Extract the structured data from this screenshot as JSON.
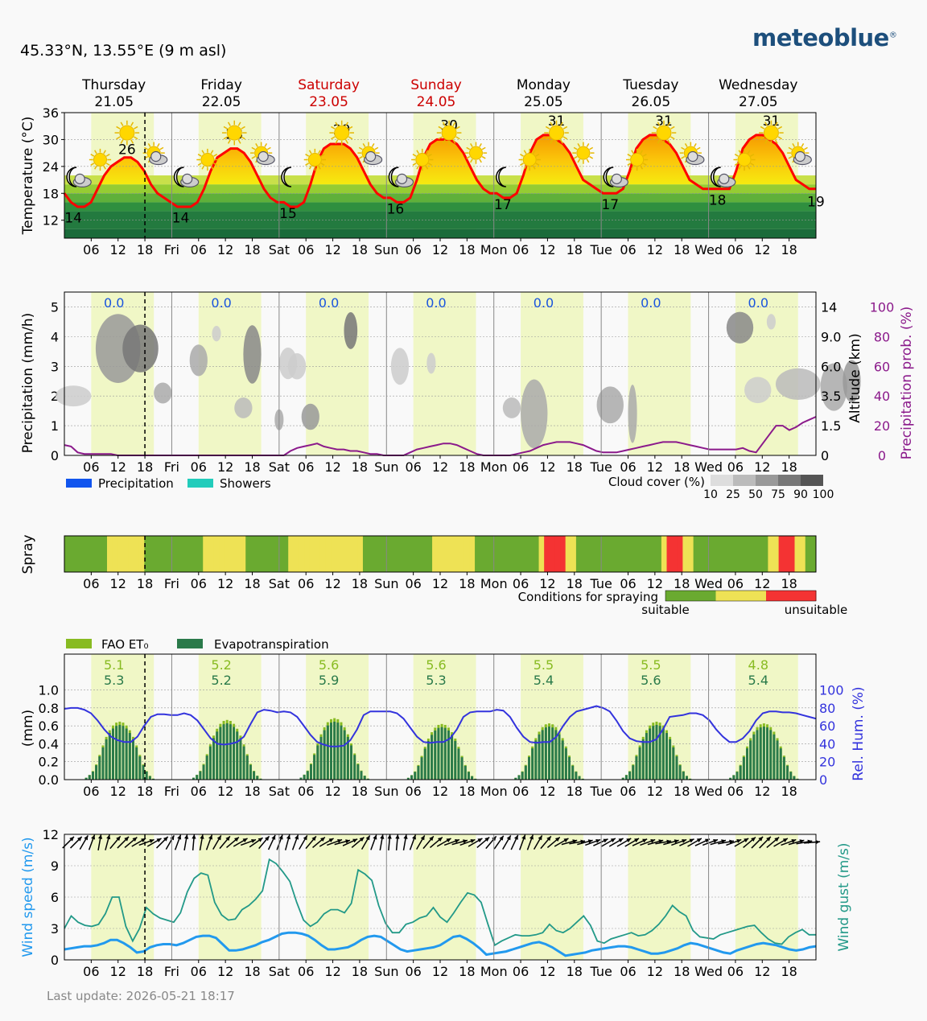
{
  "header": {
    "location": "45.33°N, 13.55°E (9 m asl)",
    "brand": "meteoblue",
    "brand_mark": "®",
    "last_update": "Last update: 2026-05-21 18:17"
  },
  "days": [
    {
      "name": "Thursday",
      "date": "21.05",
      "weekend": false,
      "short": "Thu"
    },
    {
      "name": "Friday",
      "date": "22.05",
      "weekend": false,
      "short": "Fri"
    },
    {
      "name": "Saturday",
      "date": "23.05",
      "weekend": true,
      "short": "Sat"
    },
    {
      "name": "Sunday",
      "date": "24.05",
      "weekend": true,
      "short": "Sun"
    },
    {
      "name": "Monday",
      "date": "25.05",
      "weekend": false,
      "short": "Mon"
    },
    {
      "name": "Tuesday",
      "date": "26.05",
      "weekend": false,
      "short": "Tue"
    },
    {
      "name": "Wednesday",
      "date": "27.05",
      "weekend": false,
      "short": "Wed"
    }
  ],
  "hour_ticks": [
    "06",
    "12",
    "18"
  ],
  "colors": {
    "temp_line": "#ff0000",
    "weekend_text": "#cc0000",
    "daytime_band": "#f0f7c6",
    "night": "#f9f9f9",
    "precip_prob": "#8b1a8b",
    "humidity": "#3333dd",
    "wind": "#2299ee",
    "gust": "#229988",
    "spray_suitable": "#6aaa30",
    "spray_medium": "#eee255",
    "spray_unsuitable": "#f43333",
    "fao": "#88bb22",
    "evapo": "#2a7a4a"
  },
  "chart_data": [
    {
      "type": "line",
      "id": "temperature",
      "ylabel": "Temperature (°C)",
      "ylim": [
        8,
        36
      ],
      "yticks": [
        12,
        18,
        24,
        30,
        36
      ],
      "daily_max": [
        26,
        28,
        29,
        30,
        31,
        31,
        31
      ],
      "daily_min": [
        14,
        14,
        15,
        16,
        17,
        17,
        18
      ],
      "end_value_label": "19",
      "series": [
        {
          "hourly_3h": [
            18,
            16,
            15,
            15,
            16,
            19,
            22,
            24,
            25,
            26,
            26,
            25,
            23,
            20,
            18,
            17,
            16,
            15,
            15,
            15,
            16,
            19,
            23,
            26,
            27,
            28,
            28,
            27,
            25,
            22,
            19,
            17,
            16,
            16,
            15,
            15,
            16,
            20,
            25,
            28,
            29,
            29,
            29,
            28,
            26,
            23,
            20,
            18,
            17,
            17,
            16,
            16,
            17,
            21,
            26,
            29,
            30,
            30,
            30,
            29,
            27,
            24,
            21,
            19,
            18,
            18,
            17,
            17,
            18,
            22,
            27,
            30,
            31,
            31,
            30,
            29,
            27,
            24,
            21,
            20,
            19,
            18,
            18,
            18,
            19,
            23,
            28,
            30,
            31,
            31,
            30,
            29,
            27,
            24,
            21,
            20,
            19,
            19,
            19,
            19,
            19,
            23,
            28,
            30,
            31,
            31,
            30,
            29,
            27,
            24,
            21,
            20,
            19,
            19
          ]
        }
      ]
    },
    {
      "type": "line",
      "id": "precipitation",
      "ylabel": "Precipitation (mm/h)",
      "ylabel_right_1": "Altitude (km)",
      "ylabel_right_2": "Precipitation prob. (%)",
      "ylim": [
        0,
        5.5
      ],
      "yticks": [
        0,
        1,
        2,
        3,
        4,
        5
      ],
      "altitude_ticks": [
        "0",
        "1.5",
        "3.5",
        "6.0",
        "9.0",
        "14"
      ],
      "prob_ticks": [
        "0",
        "20",
        "40",
        "60",
        "80",
        "100"
      ],
      "daily_total": [
        "0.0",
        "0.0",
        "0.0",
        "0.0",
        "0.0",
        "0.0",
        "0.0"
      ],
      "legend": [
        "Precipitation",
        "Showers"
      ],
      "cloud_legend_title": "Cloud cover (%)",
      "cloud_legend_ticks": [
        "10",
        "25",
        "50",
        "75",
        "90",
        "100"
      ],
      "series": [
        {
          "name": "Precipitation prob.",
          "hourly_3h": [
            7,
            6,
            2,
            1,
            1,
            1,
            1,
            1,
            0,
            0,
            0,
            0,
            0,
            0,
            0,
            0,
            0,
            0,
            0,
            0,
            0,
            0,
            0,
            0,
            0,
            0,
            0,
            0,
            0,
            0,
            0,
            0,
            0,
            0,
            3,
            5,
            6,
            7,
            8,
            6,
            5,
            4,
            4,
            3,
            3,
            2,
            1,
            1,
            0,
            0,
            0,
            0,
            2,
            4,
            5,
            6,
            7,
            8,
            8,
            7,
            5,
            3,
            1,
            0,
            0,
            0,
            0,
            0,
            1,
            2,
            3,
            5,
            7,
            8,
            9,
            9,
            9,
            8,
            7,
            5,
            3,
            2,
            2,
            2,
            3,
            4,
            5,
            6,
            7,
            8,
            9,
            9,
            9,
            8,
            7,
            6,
            5,
            4,
            4,
            4,
            4,
            4,
            5,
            3,
            2,
            8,
            14,
            20,
            20,
            17,
            19,
            22,
            24,
            26
          ]
        }
      ]
    },
    {
      "type": "heatmap",
      "id": "spray",
      "ylabel": "Spray",
      "legend_title": "Conditions for spraying",
      "legend_low": "suitable",
      "legend_high": "unsuitable",
      "levels": [
        0,
        0,
        0,
        0,
        0,
        0,
        0,
        0,
        1,
        1,
        1,
        1,
        1,
        1,
        1,
        0,
        0,
        0,
        0,
        0,
        0,
        0,
        0,
        0,
        0,
        0,
        1,
        1,
        1,
        1,
        1,
        1,
        1,
        1,
        0,
        0,
        0,
        0,
        0,
        0,
        0,
        0,
        1,
        1,
        1,
        1,
        1,
        1,
        1,
        1,
        1,
        1,
        1,
        1,
        1,
        1,
        0,
        0,
        0,
        0,
        0,
        0,
        0,
        0,
        0,
        0,
        0,
        0,
        0,
        1,
        1,
        1,
        1,
        1,
        1,
        1,
        1,
        0,
        0,
        0,
        0,
        0,
        0,
        0,
        0,
        0,
        0,
        0,
        0,
        1,
        2,
        2,
        2,
        2,
        1,
        1,
        0,
        0,
        0,
        0,
        0,
        0,
        0,
        0,
        0,
        0,
        0,
        0,
        0,
        0,
        0,
        0,
        1,
        2,
        2,
        2,
        1,
        1,
        0,
        0,
        0,
        0,
        0,
        0,
        0,
        0,
        0,
        0,
        0,
        0,
        0,
        0,
        1,
        1,
        2,
        2,
        2,
        1,
        1,
        0,
        0
      ]
    },
    {
      "type": "bar",
      "id": "evapotranspiration",
      "ylabel": "(mm)",
      "ylabel_right": "Rel. Hum. (%)",
      "ylim": [
        0,
        1.0
      ],
      "yticks": [
        "0.0",
        "0.2",
        "0.4",
        "0.6",
        "0.8",
        "1.0"
      ],
      "hum_ticks": [
        "0",
        "20",
        "40",
        "60",
        "80",
        "100"
      ],
      "legend": [
        "FAO ET₀",
        "Evapotranspiration"
      ],
      "daily_fao": [
        "5.1",
        "5.2",
        "5.6",
        "5.6",
        "5.5",
        "5.5",
        "4.8"
      ],
      "daily_evapo": [
        "5.3",
        "5.2",
        "5.9",
        "5.3",
        "5.4",
        "5.6",
        "5.4"
      ],
      "day_profile": [
        0,
        0,
        0,
        0,
        0,
        0,
        0.02,
        0.05,
        0.09,
        0.16,
        0.26,
        0.36,
        0.45,
        0.52,
        0.57,
        0.6,
        0.61,
        0.6,
        0.57,
        0.52,
        0.45,
        0.36,
        0.26,
        0.16,
        0.09,
        0.04,
        0.01,
        0,
        0,
        0,
        0,
        0
      ],
      "day_scale": [
        1.0,
        1.03,
        1.06,
        0.96,
        0.97,
        1.0,
        0.97
      ],
      "series": [
        {
          "name": "Rel. Hum.",
          "hourly_3h": [
            79,
            80,
            80,
            78,
            74,
            66,
            56,
            48,
            44,
            42,
            42,
            48,
            60,
            70,
            73,
            73,
            72,
            72,
            74,
            72,
            66,
            56,
            46,
            40,
            39,
            40,
            42,
            48,
            62,
            75,
            78,
            77,
            75,
            76,
            75,
            70,
            60,
            50,
            42,
            39,
            37,
            37,
            38,
            44,
            56,
            72,
            76,
            76,
            76,
            76,
            74,
            68,
            58,
            48,
            42,
            41,
            42,
            42,
            46,
            56,
            70,
            75,
            76,
            76,
            76,
            78,
            77,
            70,
            58,
            48,
            42,
            41,
            42,
            42,
            48,
            60,
            70,
            76,
            78,
            80,
            82,
            80,
            76,
            66,
            54,
            46,
            43,
            42,
            42,
            45,
            56,
            70,
            71,
            72,
            74,
            74,
            72,
            66,
            56,
            48,
            42,
            42,
            46,
            54,
            66,
            74,
            76,
            76,
            75,
            75,
            74,
            72,
            70,
            68
          ]
        }
      ]
    },
    {
      "type": "line",
      "id": "wind",
      "ylabel": "Wind speed (m/s)",
      "ylabel_right": "Wind gust (m/s)",
      "ylim": [
        0,
        12
      ],
      "yticks": [
        0,
        3,
        6,
        9,
        12
      ],
      "series": [
        {
          "name": "Wind speed",
          "hourly_3h": [
            1.0,
            1.1,
            1.2,
            1.3,
            1.3,
            1.4,
            1.6,
            1.9,
            1.9,
            1.6,
            1.2,
            0.7,
            0.8,
            1.2,
            1.4,
            1.5,
            1.5,
            1.4,
            1.6,
            1.9,
            2.2,
            2.3,
            2.3,
            2.1,
            1.5,
            0.9,
            0.9,
            1.0,
            1.2,
            1.4,
            1.7,
            1.9,
            2.2,
            2.5,
            2.6,
            2.6,
            2.5,
            2.3,
            1.9,
            1.4,
            1.0,
            1.0,
            1.1,
            1.2,
            1.5,
            1.9,
            2.2,
            2.3,
            2.2,
            1.8,
            1.4,
            1.0,
            0.8,
            0.9,
            1.0,
            1.1,
            1.2,
            1.4,
            1.8,
            2.2,
            2.3,
            2.0,
            1.6,
            1.1,
            0.5,
            0.6,
            0.7,
            0.8,
            1.0,
            1.2,
            1.4,
            1.6,
            1.7,
            1.5,
            1.2,
            0.8,
            0.4,
            0.5,
            0.6,
            0.7,
            0.9,
            1.0,
            1.1,
            1.2,
            1.3,
            1.3,
            1.2,
            1.0,
            0.8,
            0.6,
            0.6,
            0.7,
            0.9,
            1.1,
            1.4,
            1.6,
            1.5,
            1.3,
            1.1,
            0.9,
            0.7,
            0.6,
            0.9,
            1.1,
            1.3,
            1.5,
            1.6,
            1.5,
            1.4,
            1.2,
            1.0,
            0.9,
            1.0,
            1.2,
            1.3
          ]
        },
        {
          "name": "Wind gust",
          "hourly_3h": [
            3.0,
            4.2,
            3.6,
            3.3,
            3.2,
            3.4,
            4.4,
            6.0,
            6.0,
            3.2,
            1.8,
            3.0,
            5.0,
            4.4,
            4.0,
            3.8,
            3.6,
            4.5,
            6.5,
            7.8,
            8.3,
            8.1,
            5.5,
            4.3,
            3.8,
            3.9,
            4.8,
            5.2,
            5.8,
            6.6,
            9.6,
            9.2,
            8.4,
            7.5,
            5.5,
            3.8,
            3.2,
            3.6,
            4.4,
            4.8,
            4.8,
            4.5,
            5.4,
            8.6,
            8.2,
            7.6,
            5.2,
            3.5,
            2.6,
            2.6,
            3.4,
            3.6,
            4.0,
            4.2,
            5.0,
            4.1,
            3.6,
            4.5,
            5.5,
            6.4,
            6.2,
            5.5,
            3.4,
            1.4,
            1.8,
            2.1,
            2.4,
            2.3,
            2.3,
            2.4,
            2.6,
            3.4,
            2.8,
            2.6,
            3.0,
            3.6,
            4.2,
            3.3,
            1.8,
            1.6,
            2.0,
            2.2,
            2.4,
            2.6,
            2.3,
            2.4,
            2.8,
            3.4,
            4.2,
            5.2,
            4.6,
            4.2,
            2.8,
            2.2,
            2.1,
            2.0,
            2.4,
            2.6,
            2.8,
            3.0,
            3.2,
            3.3,
            2.6,
            2.0,
            1.6,
            1.5,
            2.2,
            2.6,
            2.9,
            2.4,
            2.4
          ]
        }
      ],
      "direction_deg": [
        225,
        225,
        210,
        200,
        190,
        195,
        220,
        225,
        230,
        240,
        250,
        240,
        225,
        210,
        200,
        190,
        185,
        190,
        200,
        210,
        220,
        230,
        240,
        250,
        235,
        220,
        205,
        200,
        195,
        200,
        210,
        220,
        230,
        240,
        250,
        255,
        245,
        230,
        210,
        200,
        190,
        185,
        185,
        190,
        200,
        210,
        220,
        230,
        240,
        250,
        255,
        250,
        240,
        230,
        220,
        215,
        210,
        205,
        200,
        200,
        210,
        220,
        230,
        240,
        255,
        260,
        255,
        250,
        245,
        240,
        240,
        240,
        240,
        245,
        250,
        255,
        260,
        255,
        250,
        245,
        240,
        245,
        250,
        255,
        260,
        250,
        240,
        230,
        225,
        225,
        230,
        240,
        250,
        255,
        260,
        265
      ]
    }
  ]
}
